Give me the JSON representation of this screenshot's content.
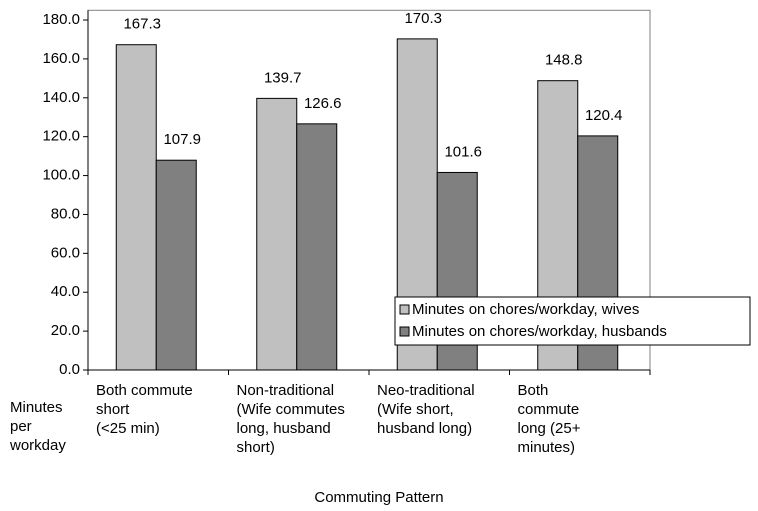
{
  "chart_data": {
    "type": "bar",
    "categories": [
      "Both commute\nshort\n(<25 min)",
      "Non-traditional\n(Wife commutes\nlong, husband\nshort)",
      "Neo-traditional\n(Wife short,\nhusband long)",
      "Both\ncommute\nlong (25+\nminutes)"
    ],
    "series": [
      {
        "name": "Minutes on chores/workday, wives",
        "color": "#c0c0c0",
        "values": [
          167.3,
          139.7,
          170.3,
          148.8
        ]
      },
      {
        "name": "Minutes on chores/workday, husbands",
        "color": "#808080",
        "values": [
          107.9,
          126.6,
          101.6,
          120.4
        ]
      }
    ],
    "y_label": "Minutes\nper\nworkday",
    "x_label": "Commuting Pattern",
    "ylim": [
      0,
      185
    ],
    "yticks": [
      {
        "value": 0,
        "label": "0.0"
      },
      {
        "value": 20,
        "label": "20.0"
      },
      {
        "value": 40,
        "label": "40.0"
      },
      {
        "value": 60,
        "label": "60.0"
      },
      {
        "value": 80,
        "label": "80.0"
      },
      {
        "value": 100,
        "label": "100.0"
      },
      {
        "value": 120,
        "label": "120.0"
      },
      {
        "value": 140,
        "label": "140.0"
      },
      {
        "value": 160,
        "label": "160.0"
      },
      {
        "value": 180,
        "label": "180.0"
      }
    ],
    "grid": false,
    "legend": "lower right"
  }
}
